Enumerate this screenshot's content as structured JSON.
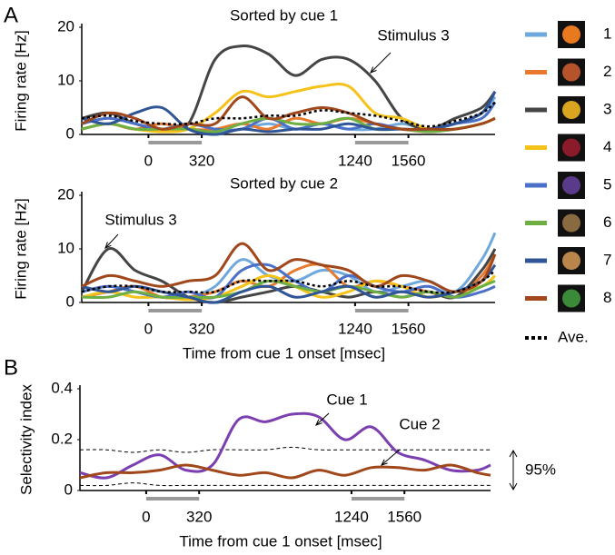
{
  "panels": [
    "A",
    "B"
  ],
  "chart_data": [
    {
      "type": "line",
      "title": "Sorted by cue 1",
      "y_label": "Firing rate [Hz]",
      "xlim": [
        -400,
        2080
      ],
      "ylim": [
        0,
        20
      ],
      "xticks": [
        0,
        320,
        1240,
        1560
      ],
      "yticks": [
        0,
        10,
        20
      ],
      "x": [
        -400,
        -240,
        -80,
        80,
        240,
        400,
        560,
        720,
        880,
        1040,
        1200,
        1360,
        1520,
        1680,
        1840,
        2000,
        2080
      ],
      "annotations": [
        {
          "text": "Stimulus 3"
        }
      ],
      "series": [
        {
          "name": "1",
          "color": "#6fa8dc",
          "values": [
            1,
            2,
            1,
            1,
            1,
            0.5,
            1,
            2,
            1,
            2,
            1,
            1,
            2,
            1,
            2,
            4,
            7
          ]
        },
        {
          "name": "2",
          "color": "#e8792e",
          "values": [
            1,
            2,
            1,
            2,
            1,
            1,
            2,
            1,
            3,
            2,
            3,
            2,
            1,
            0.5,
            1,
            2,
            3
          ]
        },
        {
          "name": "3",
          "color": "#454545",
          "values": [
            3,
            4,
            2,
            1,
            2,
            14,
            16.5,
            15,
            11,
            14,
            14,
            10,
            3,
            1,
            3,
            5,
            8
          ]
        },
        {
          "name": "4",
          "color": "#f5c21a",
          "values": [
            1,
            2,
            1,
            0.5,
            1,
            4,
            8,
            7,
            8,
            9,
            9,
            4,
            3,
            1,
            1,
            2,
            3
          ]
        },
        {
          "name": "5",
          "color": "#4a70c8",
          "values": [
            2,
            3,
            2,
            1,
            2,
            1,
            1,
            3,
            1,
            2,
            1,
            2,
            1,
            1,
            2,
            3,
            6
          ]
        },
        {
          "name": "6",
          "color": "#6daf42",
          "values": [
            1,
            2,
            1,
            1,
            1,
            0.5,
            2,
            3,
            2,
            2,
            3,
            1,
            1,
            0.5,
            1,
            2,
            3
          ]
        },
        {
          "name": "7",
          "color": "#2f5597",
          "values": [
            3,
            2,
            4,
            5,
            1,
            0,
            1,
            0.5,
            1,
            1,
            2,
            1,
            1,
            1,
            2,
            4,
            8
          ]
        },
        {
          "name": "8",
          "color": "#a0471c",
          "values": [
            2,
            4,
            3,
            1,
            2,
            2,
            7,
            3,
            4,
            5,
            4,
            2,
            1,
            1,
            1,
            2,
            3
          ]
        },
        {
          "name": "Ave.",
          "color": "#000000",
          "dashed": true,
          "values": [
            3,
            3.5,
            2.5,
            2,
            2,
            3,
            3,
            3.5,
            3.5,
            4.5,
            4,
            3.5,
            2.5,
            1.5,
            2.5,
            4,
            6
          ]
        }
      ]
    },
    {
      "type": "line",
      "title": "Sorted by cue 2",
      "y_label": "Firing rate [Hz]",
      "x_label": "Time from cue 1 onset [msec]",
      "xlim": [
        -400,
        2080
      ],
      "ylim": [
        0,
        20
      ],
      "xticks": [
        0,
        320,
        1240,
        1560
      ],
      "yticks": [
        0,
        10,
        20
      ],
      "x": [
        -400,
        -240,
        -80,
        80,
        240,
        400,
        560,
        720,
        880,
        1040,
        1200,
        1360,
        1520,
        1680,
        1840,
        2000,
        2080
      ],
      "annotations": [
        {
          "text": "Stimulus 3"
        }
      ],
      "series": [
        {
          "name": "1",
          "color": "#6fa8dc",
          "values": [
            2,
            3,
            2,
            1,
            1,
            3,
            8,
            5,
            4,
            6,
            5,
            2,
            3,
            4,
            2,
            8,
            13
          ]
        },
        {
          "name": "2",
          "color": "#e8792e",
          "values": [
            1,
            2,
            3,
            1,
            1,
            2,
            4,
            3,
            6,
            7,
            3,
            4,
            3,
            2,
            1,
            5,
            9
          ]
        },
        {
          "name": "3",
          "color": "#454545",
          "values": [
            2,
            10,
            6,
            4,
            1,
            0,
            1,
            2,
            3,
            2,
            1,
            2,
            1,
            2,
            1,
            6,
            10
          ]
        },
        {
          "name": "4",
          "color": "#f5c21a",
          "values": [
            1,
            2,
            1,
            1,
            0.5,
            1,
            3,
            5,
            3,
            1,
            2,
            4,
            3,
            1,
            2,
            3,
            5
          ]
        },
        {
          "name": "5",
          "color": "#4a70c8",
          "values": [
            2,
            3,
            2,
            1,
            2,
            1,
            6,
            7,
            4,
            2,
            5,
            3,
            2,
            3,
            1,
            2,
            3
          ]
        },
        {
          "name": "6",
          "color": "#6daf42",
          "values": [
            1,
            1,
            2,
            1,
            1,
            1,
            2,
            4,
            3,
            2,
            3,
            2,
            1,
            2,
            1,
            3,
            4
          ]
        },
        {
          "name": "7",
          "color": "#2f5597",
          "values": [
            3,
            2,
            3,
            2,
            1,
            0,
            2,
            3,
            1,
            2,
            3,
            1,
            2,
            1,
            2,
            4,
            7
          ]
        },
        {
          "name": "8",
          "color": "#a0471c",
          "values": [
            3,
            5,
            4,
            3,
            4,
            5,
            11,
            6,
            8,
            7,
            6,
            3,
            5,
            4,
            2,
            4,
            9
          ]
        },
        {
          "name": "Ave.",
          "color": "#000000",
          "dashed": true,
          "values": [
            2,
            3,
            3,
            2,
            2,
            2,
            4,
            4,
            4,
            3,
            4,
            3,
            3,
            2,
            2,
            4,
            6
          ]
        }
      ]
    },
    {
      "type": "line",
      "y_label": "Selectivity index",
      "x_label": "Time from cue 1 onset [msec]",
      "xlim": [
        -400,
        2080
      ],
      "ylim": [
        0,
        0.4
      ],
      "xticks": [
        0,
        320,
        1240,
        1560
      ],
      "yticks": [
        0,
        0.2,
        0.4
      ],
      "x": [
        -400,
        -240,
        -80,
        80,
        240,
        400,
        560,
        720,
        880,
        1040,
        1200,
        1360,
        1520,
        1680,
        1840,
        2000,
        2080
      ],
      "annotations": [
        {
          "text": "Cue 1"
        },
        {
          "text": "Cue 2"
        }
      ],
      "band": {
        "label": "95%",
        "upper": [
          0.16,
          0.16,
          0.15,
          0.16,
          0.15,
          0.16,
          0.16,
          0.16,
          0.17,
          0.16,
          0.16,
          0.16,
          0.16,
          0.16,
          0.16,
          0.16,
          0.16
        ],
        "lower": [
          0.02,
          0.02,
          0.03,
          0.02,
          0.02,
          0.02,
          0.02,
          0.02,
          0.02,
          0.02,
          0.02,
          0.02,
          0.02,
          0.02,
          0.02,
          0.02,
          0.02
        ]
      },
      "series": [
        {
          "name": "Cue 1",
          "color": "#7b3fb0",
          "values": [
            0.07,
            0.05,
            0.1,
            0.14,
            0.08,
            0.1,
            0.28,
            0.27,
            0.3,
            0.29,
            0.2,
            0.25,
            0.15,
            0.12,
            0.08,
            0.08,
            0.1
          ]
        },
        {
          "name": "Cue 2",
          "color": "#a0471c",
          "values": [
            0.05,
            0.07,
            0.07,
            0.08,
            0.1,
            0.08,
            0.06,
            0.07,
            0.05,
            0.08,
            0.06,
            0.09,
            0.09,
            0.08,
            0.1,
            0.07,
            0.06
          ]
        }
      ]
    }
  ]
}
